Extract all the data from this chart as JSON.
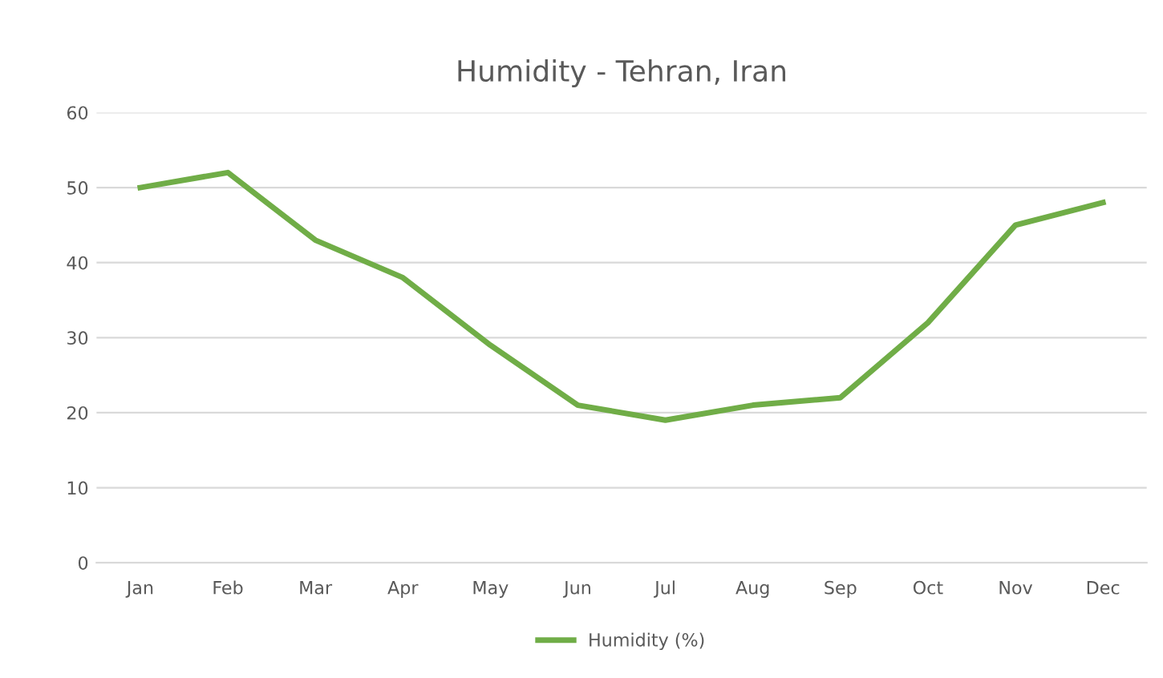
{
  "chart_data": {
    "type": "line",
    "title": "Humidity - Tehran, Iran",
    "categories": [
      "Jan",
      "Feb",
      "Mar",
      "Apr",
      "May",
      "Jun",
      "Jul",
      "Aug",
      "Sep",
      "Oct",
      "Nov",
      "Dec"
    ],
    "series": [
      {
        "name": "Humidity (%)",
        "color": "#70ad47",
        "values": [
          50,
          52,
          43,
          38,
          29,
          21,
          19,
          21,
          22,
          32,
          45,
          48
        ]
      }
    ],
    "ylim": [
      0,
      60
    ],
    "yticks": [
      0,
      10,
      20,
      30,
      40,
      50,
      60
    ],
    "grid": "y",
    "legend": "bottom",
    "marker": "none",
    "line_style": "solid"
  }
}
